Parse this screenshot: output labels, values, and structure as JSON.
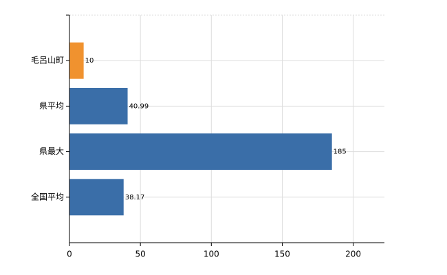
{
  "chart_data": {
    "type": "bar",
    "orientation": "horizontal",
    "categories": [
      "毛呂山町",
      "県平均",
      "県最大",
      "全国平均"
    ],
    "values": [
      10,
      40.99,
      185,
      38.17
    ],
    "colors": [
      "#f0922f",
      "#3a6ea8",
      "#3a6ea8",
      "#3a6ea8"
    ],
    "xlim": [
      0,
      222
    ],
    "xticks": [
      0,
      50,
      100,
      150,
      200
    ],
    "grid": true
  }
}
